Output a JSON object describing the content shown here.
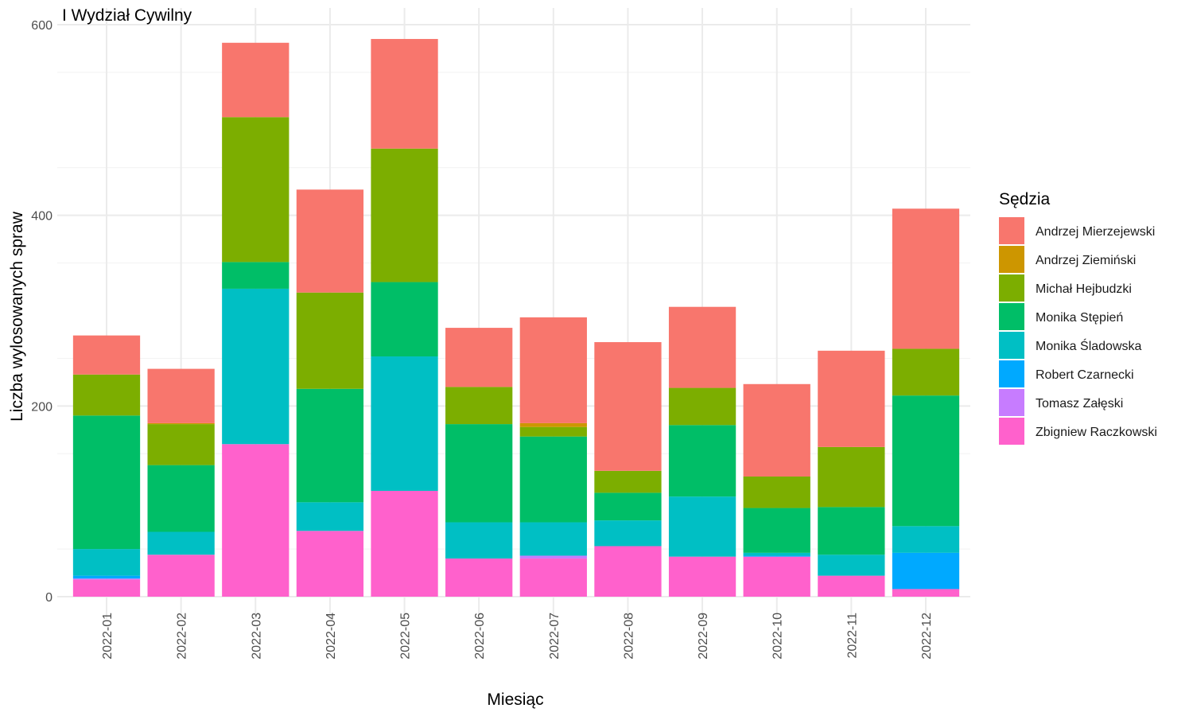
{
  "chart_data": {
    "type": "bar",
    "stacked": true,
    "title": "I Wydział Cywilny",
    "xlabel": "Miesiąc",
    "ylabel": "Liczba wylosowanych spraw",
    "ylim": [
      0,
      600
    ],
    "yticks": [
      0,
      200,
      400,
      600
    ],
    "grid": true,
    "legend_position": "right",
    "legend_title": "Sędzia",
    "categories": [
      "2022-01",
      "2022-02",
      "2022-03",
      "2022-04",
      "2022-05",
      "2022-06",
      "2022-07",
      "2022-08",
      "2022-09",
      "2022-10",
      "2022-11",
      "2022-12"
    ],
    "series": [
      {
        "name": "Andrzej Mierzejewski",
        "color": "#F8766D",
        "values": [
          41,
          57,
          78,
          108,
          115,
          62,
          111,
          135,
          85,
          97,
          101,
          147
        ]
      },
      {
        "name": "Andrzej Ziemiński",
        "color": "#CD9600",
        "values": [
          0,
          1,
          0,
          0,
          0,
          0,
          4,
          0,
          0,
          0,
          0,
          0
        ]
      },
      {
        "name": "Michał Hejbudzki",
        "color": "#7CAE00",
        "values": [
          43,
          43,
          152,
          101,
          140,
          39,
          10,
          23,
          39,
          33,
          63,
          49
        ]
      },
      {
        "name": "Monika Stępień",
        "color": "#00BE67",
        "values": [
          140,
          70,
          28,
          119,
          78,
          103,
          90,
          29,
          75,
          47,
          50,
          137
        ]
      },
      {
        "name": "Monika Śladowska",
        "color": "#00BFC4",
        "values": [
          28,
          24,
          163,
          30,
          141,
          38,
          35,
          27,
          63,
          3,
          22,
          28
        ]
      },
      {
        "name": "Robert Czarnecki",
        "color": "#00A9FF",
        "values": [
          3,
          0,
          0,
          0,
          0,
          0,
          0,
          0,
          0,
          1,
          0,
          38
        ]
      },
      {
        "name": "Tomasz Załęski",
        "color": "#C77CFF",
        "values": [
          1,
          0,
          0,
          0,
          0,
          0,
          3,
          0,
          0,
          0,
          0,
          0
        ]
      },
      {
        "name": "Zbigniew Raczkowski",
        "color": "#FF61CC",
        "values": [
          18,
          44,
          160,
          69,
          111,
          40,
          40,
          53,
          42,
          42,
          22,
          8
        ]
      }
    ]
  }
}
